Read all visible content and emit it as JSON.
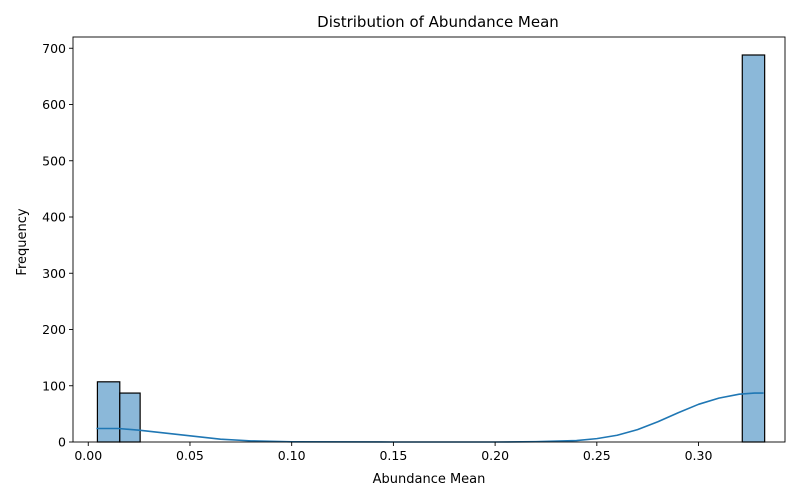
{
  "chart_data": {
    "type": "bar",
    "subtype": "histogram",
    "title": "Distribution of Abundance Mean",
    "xlabel": "Abundance Mean",
    "ylabel": "Frequency",
    "xlim": [
      -0.0075,
      0.3425
    ],
    "ylim": [
      0,
      720
    ],
    "xticks": [
      0.0,
      0.05,
      0.1,
      0.15,
      0.2,
      0.25,
      0.3
    ],
    "xtick_labels": [
      "0.00",
      "0.05",
      "0.10",
      "0.15",
      "0.20",
      "0.25",
      "0.30"
    ],
    "yticks": [
      0,
      100,
      200,
      300,
      400,
      500,
      600,
      700
    ],
    "ytick_labels": [
      "0",
      "100",
      "200",
      "300",
      "400",
      "500",
      "600",
      "700"
    ],
    "bins": [
      {
        "x0": 0.0045,
        "x1": 0.0155,
        "count": 107
      },
      {
        "x0": 0.0155,
        "x1": 0.0255,
        "count": 87
      },
      {
        "x0": 0.3215,
        "x1": 0.3325,
        "count": 688
      }
    ],
    "kde": {
      "x": [
        0.004,
        0.015,
        0.025,
        0.035,
        0.05,
        0.065,
        0.08,
        0.1,
        0.15,
        0.2,
        0.22,
        0.24,
        0.25,
        0.26,
        0.27,
        0.28,
        0.29,
        0.3,
        0.31,
        0.32,
        0.3275,
        0.332
      ],
      "y": [
        24,
        24,
        21,
        17,
        11,
        5,
        2,
        0.4,
        0,
        0,
        0.5,
        2.5,
        6,
        12,
        22,
        36,
        52,
        67,
        78,
        85,
        87,
        87
      ]
    },
    "grid": false,
    "colors": {
      "bar_fill": "#8bb8d9",
      "bar_edge": "#000000",
      "kde_line": "#1f77b4"
    }
  }
}
